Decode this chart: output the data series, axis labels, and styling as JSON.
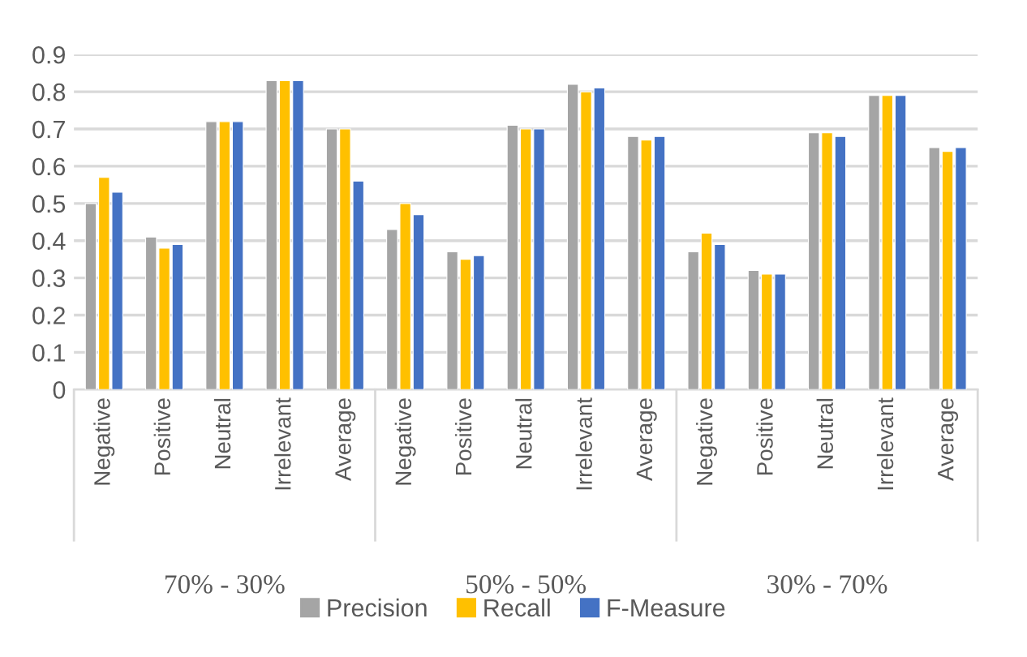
{
  "chart_data": {
    "type": "bar",
    "categories": [
      "Negative",
      "Positive",
      "Neutral",
      "Irrelevant",
      "Average",
      "Negative",
      "Positive",
      "Neutral",
      "Irrelevant",
      "Average",
      "Negative",
      "Positive",
      "Neutral",
      "Irrelevant",
      "Average"
    ],
    "series": [
      {
        "name": "Precision",
        "color": "#a5a5a5",
        "values": [
          0.5,
          0.41,
          0.72,
          0.83,
          0.7,
          0.43,
          0.37,
          0.71,
          0.82,
          0.68,
          0.37,
          0.32,
          0.69,
          0.79,
          0.65
        ]
      },
      {
        "name": "Recall",
        "color": "#ffc000",
        "values": [
          0.57,
          0.38,
          0.72,
          0.83,
          0.7,
          0.5,
          0.35,
          0.7,
          0.8,
          0.67,
          0.42,
          0.31,
          0.69,
          0.79,
          0.64
        ]
      },
      {
        "name": "F-Measure",
        "color": "#4472c4",
        "values": [
          0.53,
          0.39,
          0.72,
          0.83,
          0.56,
          0.47,
          0.36,
          0.7,
          0.81,
          0.68,
          0.39,
          0.31,
          0.68,
          0.79,
          0.65
        ]
      }
    ],
    "annotations": [
      "70% - 30%",
      "50% - 50%",
      "30% - 70%"
    ],
    "ylim": [
      0,
      0.9
    ],
    "yticks": [
      0,
      0.1,
      0.2,
      0.3,
      0.4,
      0.5,
      0.6,
      0.7,
      0.8,
      0.9
    ],
    "grid": "y",
    "legend": "bottom"
  }
}
